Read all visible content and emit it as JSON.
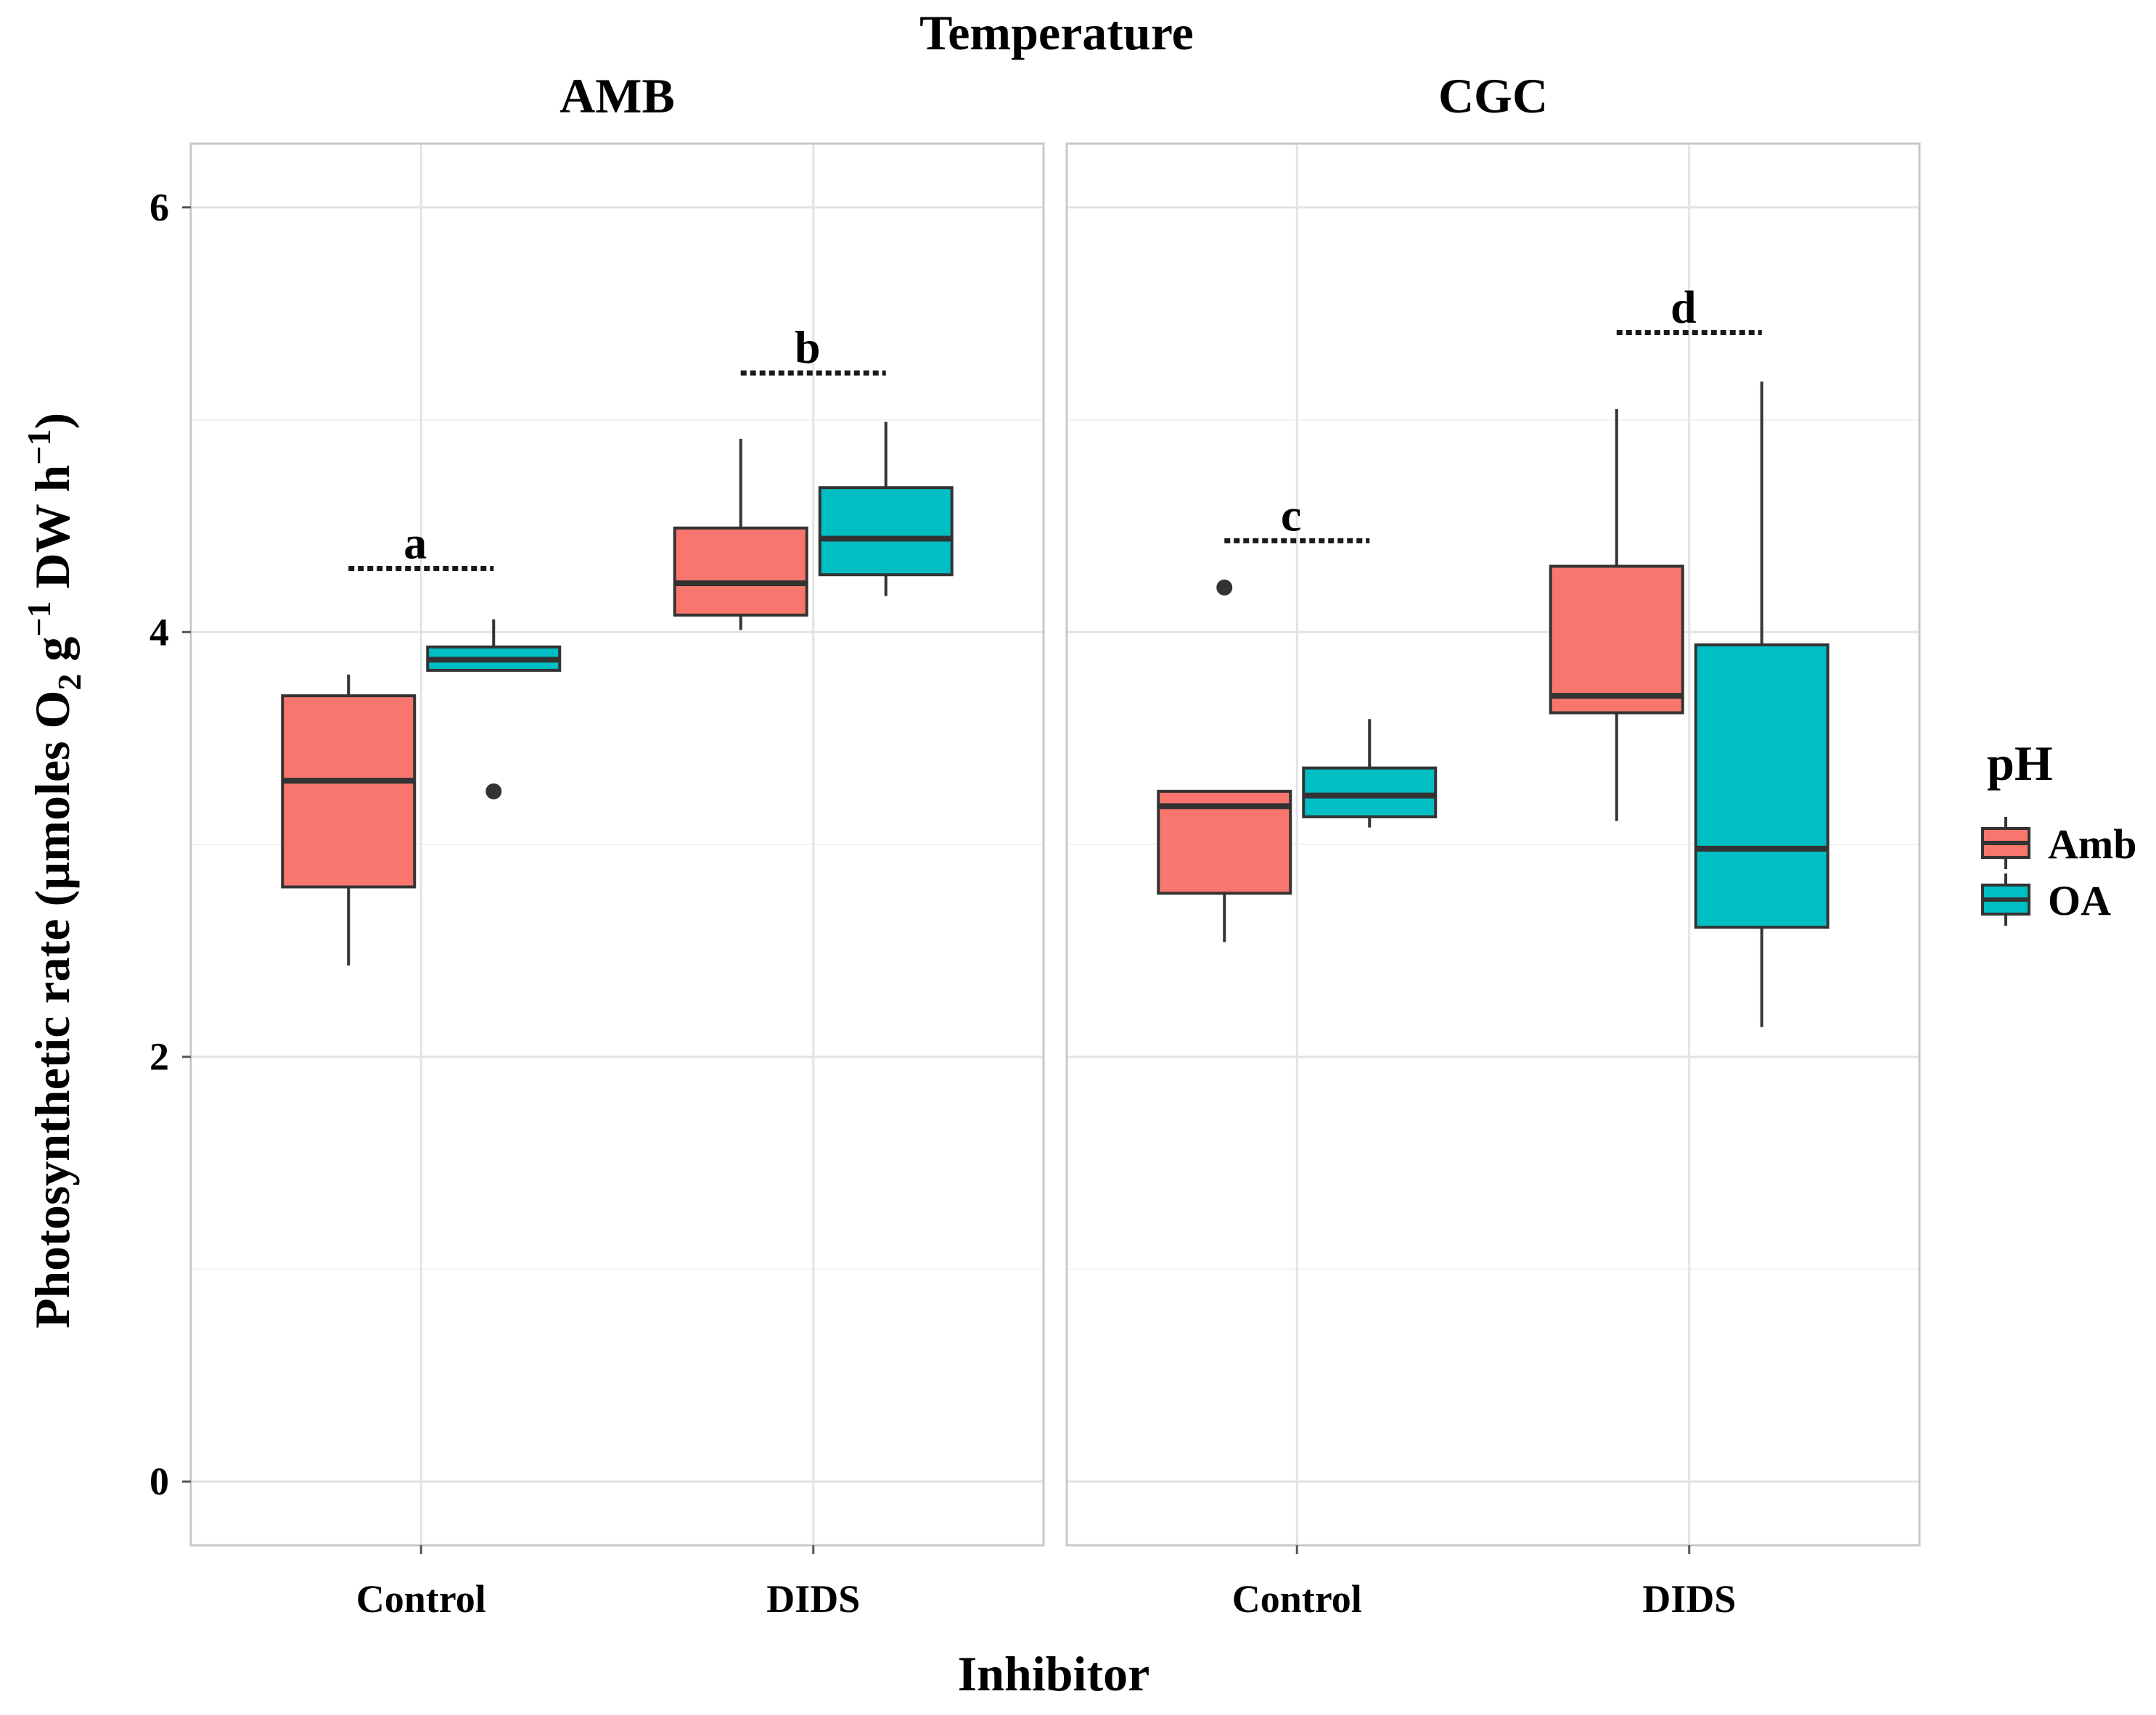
{
  "chart_data": {
    "type": "boxplot",
    "facet_title": "Temperature",
    "xlabel": "Inhibitor",
    "ylabel_parts": {
      "main": "Photosynthetic rate (µmoles O",
      "sub": "2",
      "mid": " g",
      "sup1": "−1",
      "tail": " DW h",
      "sup2": "−1",
      "close": ")"
    },
    "ylim": [
      -0.3,
      6.3
    ],
    "y_ticks": [
      {
        "value": 0,
        "label": "0"
      },
      {
        "value": 2,
        "label": "2"
      },
      {
        "value": 4,
        "label": "4"
      },
      {
        "value": 6,
        "label": "6"
      }
    ],
    "categories": [
      "Control",
      "DIDS"
    ],
    "legend": {
      "title": "pH",
      "items": [
        {
          "name": "Amb",
          "color": "#F8766D"
        },
        {
          "name": "OA",
          "color": "#00BFC4"
        }
      ]
    },
    "panels": [
      {
        "title": "AMB",
        "groups": [
          {
            "category": "Control",
            "letter": "a",
            "letter_y": 4.3,
            "boxes": [
              {
                "series": "Amb",
                "color": "#F8766D",
                "min": 2.43,
                "q1": 2.8,
                "median": 3.3,
                "q3": 3.7,
                "max": 3.8,
                "outliers": []
              },
              {
                "series": "OA",
                "color": "#00BFC4",
                "min": 3.82,
                "q1": 3.82,
                "median": 3.87,
                "q3": 3.93,
                "max": 4.06,
                "outliers": [
                  3.25
                ]
              }
            ]
          },
          {
            "category": "DIDS",
            "letter": "b",
            "letter_y": 5.22,
            "boxes": [
              {
                "series": "Amb",
                "color": "#F8766D",
                "min": 4.01,
                "q1": 4.08,
                "median": 4.23,
                "q3": 4.49,
                "max": 4.91,
                "outliers": []
              },
              {
                "series": "OA",
                "color": "#00BFC4",
                "min": 4.17,
                "q1": 4.27,
                "median": 4.44,
                "q3": 4.68,
                "max": 4.99,
                "outliers": []
              }
            ]
          }
        ]
      },
      {
        "title": "CGC",
        "groups": [
          {
            "category": "Control",
            "letter": "c",
            "letter_y": 4.43,
            "boxes": [
              {
                "series": "Amb",
                "color": "#F8766D",
                "min": 2.54,
                "q1": 2.77,
                "median": 3.18,
                "q3": 3.25,
                "max": 3.25,
                "outliers": [
                  4.21
                ]
              },
              {
                "series": "OA",
                "color": "#00BFC4",
                "min": 3.08,
                "q1": 3.13,
                "median": 3.23,
                "q3": 3.36,
                "max": 3.59,
                "outliers": []
              }
            ]
          },
          {
            "category": "DIDS",
            "letter": "d",
            "letter_y": 5.41,
            "boxes": [
              {
                "series": "Amb",
                "color": "#F8766D",
                "min": 3.11,
                "q1": 3.62,
                "median": 3.7,
                "q3": 4.31,
                "max": 5.05,
                "outliers": []
              },
              {
                "series": "OA",
                "color": "#00BFC4",
                "min": 2.14,
                "q1": 2.61,
                "median": 2.98,
                "q3": 3.94,
                "max": 5.18,
                "outliers": []
              }
            ]
          }
        ]
      }
    ]
  }
}
